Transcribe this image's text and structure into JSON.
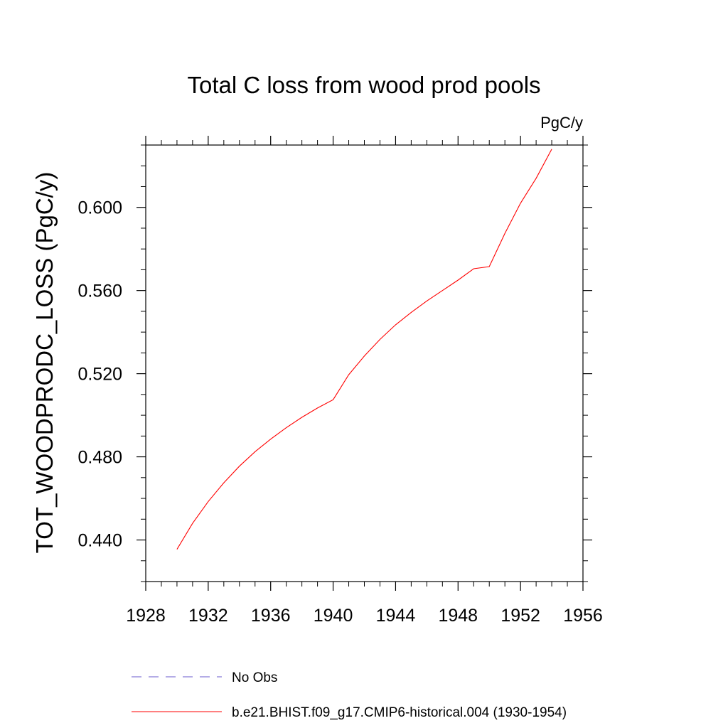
{
  "chart_data": {
    "type": "line",
    "title": "Total C loss from wood prod pools",
    "units_label": "PgC/y",
    "ylabel": "TOT_WOODPRODC_LOSS  (PgC/y)",
    "xlabel": "",
    "xlim": [
      1928,
      1956
    ],
    "ylim": [
      0.42,
      0.63
    ],
    "x_ticks": [
      1928,
      1932,
      1936,
      1940,
      1944,
      1948,
      1952,
      1956
    ],
    "x_tick_labels": [
      "1928",
      "1932",
      "1936",
      "1940",
      "1944",
      "1948",
      "1952",
      "1956"
    ],
    "x_minor_step": 1,
    "y_ticks": [
      0.44,
      0.48,
      0.52,
      0.56,
      0.6
    ],
    "y_tick_labels": [
      "0.440",
      "0.480",
      "0.520",
      "0.560",
      "0.600"
    ],
    "y_minor_step": 0.01,
    "grid": false,
    "legend_position": "bottom",
    "series": [
      {
        "name": "No Obs",
        "color": "#6a5acd",
        "dash": "dashed",
        "x": [],
        "y": []
      },
      {
        "name": "b.e21.BHIST.f09_g17.CMIP6-historical.004 (1930-1954)",
        "color": "#ff0000",
        "dash": "solid",
        "x": [
          1930,
          1931,
          1932,
          1933,
          1934,
          1935,
          1936,
          1937,
          1938,
          1939,
          1940,
          1941,
          1942,
          1943,
          1944,
          1945,
          1946,
          1947,
          1948,
          1949,
          1950,
          1951,
          1952,
          1953,
          1954
        ],
        "y": [
          0.4355,
          0.448,
          0.4585,
          0.4675,
          0.4755,
          0.4825,
          0.4885,
          0.494,
          0.499,
          0.5035,
          0.5075,
          0.5195,
          0.5285,
          0.5365,
          0.5435,
          0.5495,
          0.555,
          0.56,
          0.565,
          0.5705,
          0.5715,
          0.5875,
          0.602,
          0.614,
          0.628
        ]
      }
    ]
  }
}
